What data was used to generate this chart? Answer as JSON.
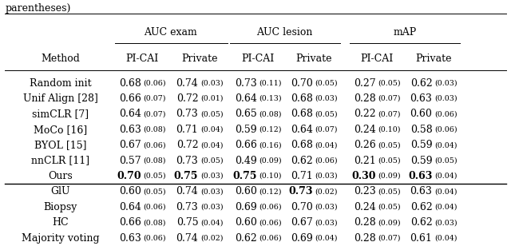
{
  "title_text": "parentheses)",
  "col_groups": [
    "AUC exam",
    "AUC lesion",
    "mAP"
  ],
  "sub_headers": [
    "Method",
    "PI-CAI",
    "Private",
    "PI-CAI",
    "Private",
    "PI-CAI",
    "Private"
  ],
  "rows_section1": [
    {
      "method": "Random init",
      "cells": [
        [
          "0.68",
          "(0.06)",
          false
        ],
        [
          "0.74",
          "(0.03)",
          false
        ],
        [
          "0.73",
          "(0.11)",
          false
        ],
        [
          "0.70",
          "(0.05)",
          false
        ],
        [
          "0.27",
          "(0.05)",
          false
        ],
        [
          "0.62",
          "(0.03)",
          false
        ]
      ]
    },
    {
      "method": "Unif Align [28]",
      "cells": [
        [
          "0.66",
          "(0.07)",
          false
        ],
        [
          "0.72",
          "(0.01)",
          false
        ],
        [
          "0.64",
          "(0.13)",
          false
        ],
        [
          "0.68",
          "(0.03)",
          false
        ],
        [
          "0.28",
          "(0.07)",
          false
        ],
        [
          "0.63",
          "(0.03)",
          false
        ]
      ]
    },
    {
      "method": "simCLR [7]",
      "cells": [
        [
          "0.64",
          "(0.07)",
          false
        ],
        [
          "0.73",
          "(0.05)",
          false
        ],
        [
          "0.65",
          "(0.08)",
          false
        ],
        [
          "0.68",
          "(0.05)",
          false
        ],
        [
          "0.22",
          "(0.07)",
          false
        ],
        [
          "0.60",
          "(0.06)",
          false
        ]
      ]
    },
    {
      "method": "MoCo [16]",
      "cells": [
        [
          "0.63",
          "(0.08)",
          false
        ],
        [
          "0.71",
          "(0.04)",
          false
        ],
        [
          "0.59",
          "(0.12)",
          false
        ],
        [
          "0.64",
          "(0.07)",
          false
        ],
        [
          "0.24",
          "(0.10)",
          false
        ],
        [
          "0.58",
          "(0.06)",
          false
        ]
      ]
    },
    {
      "method": "BYOL [15]",
      "cells": [
        [
          "0.67",
          "(0.06)",
          false
        ],
        [
          "0.72",
          "(0.04)",
          false
        ],
        [
          "0.66",
          "(0.16)",
          false
        ],
        [
          "0.68",
          "(0.04)",
          false
        ],
        [
          "0.26",
          "(0.05)",
          false
        ],
        [
          "0.59",
          "(0.04)",
          false
        ]
      ]
    },
    {
      "method": "nnCLR [11]",
      "cells": [
        [
          "0.57",
          "(0.08)",
          false
        ],
        [
          "0.73",
          "(0.05)",
          false
        ],
        [
          "0.49",
          "(0.09)",
          false
        ],
        [
          "0.62",
          "(0.06)",
          false
        ],
        [
          "0.21",
          "(0.05)",
          false
        ],
        [
          "0.59",
          "(0.05)",
          false
        ]
      ]
    },
    {
      "method": "Ours",
      "cells": [
        [
          "0.70",
          "(0.05)",
          true
        ],
        [
          "0.75",
          "(0.03)",
          true
        ],
        [
          "0.75",
          "(0.10)",
          true
        ],
        [
          "0.71",
          "(0.03)",
          false
        ],
        [
          "0.30",
          "(0.09)",
          true
        ],
        [
          "0.63",
          "(0.04)",
          true
        ]
      ]
    }
  ],
  "rows_section2": [
    {
      "method": "GlU",
      "cells": [
        [
          "0.60",
          "(0.05)",
          false
        ],
        [
          "0.74",
          "(0.03)",
          false
        ],
        [
          "0.60",
          "(0.12)",
          false
        ],
        [
          "0.73",
          "(0.02)",
          true
        ],
        [
          "0.23",
          "(0.05)",
          false
        ],
        [
          "0.63",
          "(0.04)",
          false
        ]
      ]
    },
    {
      "method": "Biopsy",
      "cells": [
        [
          "0.64",
          "(0.06)",
          false
        ],
        [
          "0.73",
          "(0.03)",
          false
        ],
        [
          "0.69",
          "(0.06)",
          false
        ],
        [
          "0.70",
          "(0.03)",
          false
        ],
        [
          "0.24",
          "(0.05)",
          false
        ],
        [
          "0.62",
          "(0.04)",
          false
        ]
      ]
    },
    {
      "method": "HC",
      "cells": [
        [
          "0.66",
          "(0.08)",
          false
        ],
        [
          "0.75",
          "(0.04)",
          false
        ],
        [
          "0.60",
          "(0.06)",
          false
        ],
        [
          "0.67",
          "(0.03)",
          false
        ],
        [
          "0.28",
          "(0.09)",
          false
        ],
        [
          "0.62",
          "(0.03)",
          false
        ]
      ]
    },
    {
      "method": "Majority voting",
      "cells": [
        [
          "0.63",
          "(0.06)",
          false
        ],
        [
          "0.74",
          "(0.02)",
          false
        ],
        [
          "0.62",
          "(0.06)",
          false
        ],
        [
          "0.69",
          "(0.04)",
          false
        ],
        [
          "0.28",
          "(0.07)",
          false
        ],
        [
          "0.61",
          "(0.04)",
          false
        ]
      ]
    }
  ],
  "figsize": [
    6.4,
    3.08
  ],
  "dpi": 100,
  "main_fontsize": 9.0,
  "std_fontsize": 6.8,
  "header_fontsize": 9.0,
  "method_fontsize": 9.0
}
